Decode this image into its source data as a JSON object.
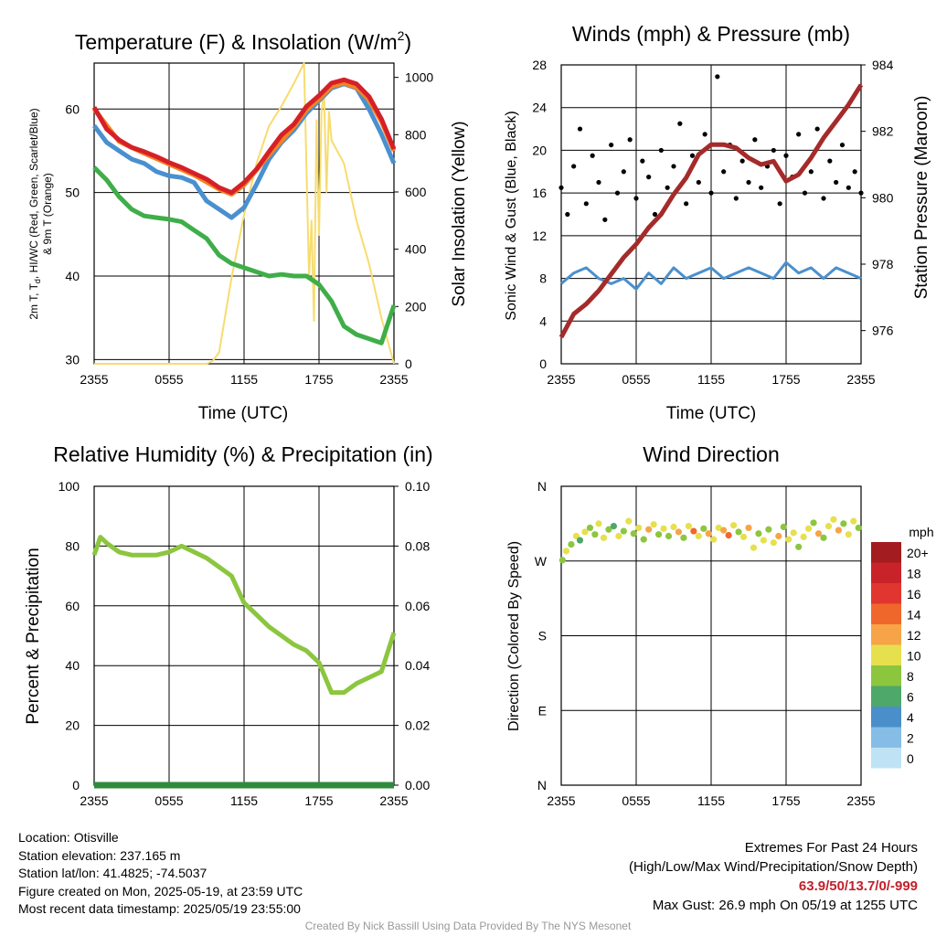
{
  "colors": {
    "temp": "#d62027",
    "heat_index": "#f58220",
    "dewpoint": "#3fae49",
    "wind_chill": "#4a90cf",
    "insolation": "#f7dc6f",
    "pressure": "#a52a2a",
    "gust": "#000000",
    "wind": "#4a90cf",
    "rh": "#8cc63f",
    "precip": "#2e8b3c"
  },
  "x_ticks": [
    "2355",
    "0555",
    "1155",
    "1755",
    "2355"
  ],
  "panels": {
    "temperature": {
      "title": "Temperature (F) & Insolation (W/m",
      "title_sup": "2",
      "title_tail": ")",
      "xlabel": "Time (UTC)",
      "ylabel_left_line1": "2m T, T",
      "ylabel_left_sub": "d",
      "ylabel_left_line1b": ", HI/WC (Red, Green, Scarlet/Blue)",
      "ylabel_left_line2": "& 9m T (Orange)",
      "ylabel_right": "Solar Insolation (Yellow)",
      "left_ticks": [
        "30",
        "40",
        "50",
        "60"
      ],
      "right_ticks": [
        "0",
        "200",
        "400",
        "600",
        "800",
        "1000"
      ]
    },
    "winds": {
      "title": "Winds (mph) & Pressure (mb)",
      "xlabel": "Time (UTC)",
      "ylabel_left": "Sonic Wind & Gust (Blue, Black)",
      "ylabel_right": "Station Pressure (Maroon)",
      "left_ticks": [
        "0",
        "4",
        "8",
        "12",
        "16",
        "20",
        "24",
        "28"
      ],
      "right_ticks": [
        "976",
        "978",
        "980",
        "982",
        "984"
      ]
    },
    "humidity": {
      "title": "Relative Humidity (%) & Precipitation (in)",
      "ylabel_left": "Percent & Precipitation",
      "left_ticks": [
        "0",
        "20",
        "40",
        "60",
        "80",
        "100"
      ],
      "right_ticks": [
        "0.00",
        "0.02",
        "0.04",
        "0.06",
        "0.08",
        "0.10"
      ]
    },
    "direction": {
      "title": "Wind Direction",
      "ylabel_left": "Direction (Colored By Speed)",
      "left_ticks": [
        "N",
        "E",
        "S",
        "W",
        "N"
      ],
      "legend_title": "mph",
      "legend_labels": [
        "20+",
        "18",
        "16",
        "14",
        "12",
        "10",
        "8",
        "6",
        "4",
        "2",
        "0"
      ],
      "legend_colors": [
        "#a31c1f",
        "#c9232a",
        "#e0362f",
        "#f0672c",
        "#f7a448",
        "#e6e04e",
        "#8cc63f",
        "#4ea86a",
        "#4a8fca",
        "#86bde6",
        "#bfe3f5"
      ]
    }
  },
  "chart_data": [
    {
      "type": "line",
      "title": "Temperature (F) & Insolation (W/m2)",
      "xlabel": "Time (UTC)",
      "ylabel": "2m T, Td, HI/WC (Red, Green, Scarlet/Blue) & 9m T (Orange)",
      "y2label": "Solar Insolation (Yellow)",
      "x_range_hours": [
        0,
        24
      ],
      "ylim": [
        29.5,
        65.5
      ],
      "y2lim": [
        0,
        1050
      ],
      "series": [
        {
          "name": "2m T",
          "axis": "left",
          "x_hours": [
            0,
            1,
            2,
            3,
            4,
            5,
            6,
            7,
            8,
            9,
            10,
            11,
            12,
            13,
            14,
            15,
            16,
            17,
            18,
            19,
            20,
            21,
            22,
            23,
            24
          ],
          "values": [
            60.2,
            57.6,
            56.3,
            55.4,
            54.9,
            54.3,
            53.6,
            53.0,
            52.3,
            51.6,
            50.6,
            50.0,
            51.2,
            52.8,
            54.9,
            56.9,
            58.2,
            60.3,
            61.6,
            63.1,
            63.5,
            63.0,
            61.5,
            58.8,
            55.2
          ]
        },
        {
          "name": "9m T",
          "axis": "left",
          "x_hours": [
            0,
            2,
            4,
            6,
            8,
            10,
            11,
            12,
            14,
            16,
            17,
            18,
            19,
            20,
            21,
            22,
            23,
            24
          ],
          "values": [
            60.0,
            56.1,
            54.7,
            53.4,
            52.1,
            50.4,
            49.8,
            50.9,
            54.5,
            57.9,
            59.9,
            61.2,
            62.7,
            63.1,
            62.6,
            61.1,
            58.5,
            55.0
          ]
        },
        {
          "name": "HI/WC",
          "axis": "left",
          "x_hours": [
            0,
            1,
            2,
            3,
            4,
            5,
            6,
            7,
            8,
            9,
            10,
            11,
            12,
            13,
            14,
            15,
            16,
            17,
            18,
            19,
            20,
            21,
            22,
            23,
            24
          ],
          "values": [
            58.0,
            56.0,
            55.0,
            54.0,
            53.5,
            52.5,
            52.0,
            51.8,
            51.2,
            49.0,
            48.0,
            47.0,
            48.2,
            51.0,
            54.0,
            56.0,
            57.5,
            59.5,
            61.0,
            62.5,
            63.0,
            62.5,
            60.0,
            57.0,
            53.5
          ]
        },
        {
          "name": "Td",
          "axis": "left",
          "x_hours": [
            0,
            1,
            2,
            3,
            4,
            5,
            6,
            7,
            8,
            9,
            10,
            11,
            12,
            13,
            14,
            15,
            16,
            17,
            18,
            19,
            20,
            21,
            22,
            23,
            24
          ],
          "values": [
            53.0,
            51.5,
            49.5,
            48.0,
            47.2,
            47.0,
            46.8,
            46.5,
            45.5,
            44.5,
            42.5,
            41.5,
            41.0,
            40.5,
            40.0,
            40.2,
            40.0,
            40.0,
            39.0,
            37.0,
            34.0,
            33.0,
            32.5,
            32.0,
            36.5
          ]
        },
        {
          "name": "Solar Insolation",
          "axis": "right",
          "x_hours": [
            0,
            8,
            9,
            9.5,
            10,
            11,
            12,
            13,
            14,
            15,
            16,
            16.8,
            17.2,
            17.4,
            17.6,
            17.8,
            18.0,
            18.2,
            18.4,
            18.6,
            18.8,
            19,
            20,
            21,
            22,
            23,
            24
          ],
          "values": [
            0,
            0,
            0,
            10,
            40,
            300,
            520,
            700,
            830,
            900,
            980,
            1050,
            300,
            500,
            150,
            850,
            450,
            880,
            950,
            600,
            880,
            780,
            700,
            500,
            350,
            160,
            0
          ]
        }
      ]
    },
    {
      "type": "line",
      "title": "Winds (mph) & Pressure (mb)",
      "xlabel": "Time (UTC)",
      "ylabel": "Sonic Wind & Gust (Blue, Black)",
      "y2label": "Station Pressure (Maroon)",
      "x_range_hours": [
        0,
        24
      ],
      "ylim": [
        0,
        28
      ],
      "y2lim": [
        975,
        984
      ],
      "series": [
        {
          "name": "Sonic Wind",
          "axis": "left",
          "x_hours": [
            0,
            1,
            2,
            3,
            4,
            5,
            6,
            7,
            8,
            9,
            10,
            11,
            12,
            13,
            14,
            15,
            16,
            17,
            18,
            19,
            20,
            21,
            22,
            23,
            24
          ],
          "values": [
            7.5,
            8.5,
            9.0,
            8.0,
            7.5,
            8.0,
            7.0,
            8.5,
            7.5,
            9.0,
            8.0,
            8.5,
            9.0,
            8.0,
            8.5,
            9.0,
            8.5,
            8.0,
            9.5,
            8.5,
            9.0,
            8.0,
            9.0,
            8.5,
            8.0
          ]
        },
        {
          "name": "Gust",
          "axis": "left",
          "x_hours": [
            0,
            0.5,
            1,
            1.5,
            2,
            2.5,
            3,
            3.5,
            4,
            4.5,
            5,
            5.5,
            6,
            6.5,
            7,
            7.5,
            8,
            8.5,
            9,
            9.5,
            10,
            10.5,
            11,
            11.5,
            12,
            12.5,
            13,
            13.5,
            14,
            14.5,
            15,
            15.5,
            16,
            16.5,
            17,
            17.5,
            18,
            18.5,
            19,
            19.5,
            20,
            20.5,
            21,
            21.5,
            22,
            22.5,
            23,
            23.5,
            24
          ],
          "values": [
            16.5,
            14.0,
            18.5,
            22.0,
            15.0,
            19.5,
            17.0,
            13.5,
            20.5,
            16.0,
            18.0,
            21.0,
            15.5,
            19.0,
            17.5,
            14.0,
            20.0,
            16.5,
            18.5,
            22.5,
            15.0,
            19.5,
            17.0,
            21.5,
            16.0,
            26.9,
            18.0,
            20.5,
            15.5,
            19.0,
            17.0,
            21.0,
            16.5,
            18.5,
            20.0,
            15.0,
            19.5,
            17.5,
            21.5,
            16.0,
            18.0,
            22.0,
            15.5,
            19.0,
            17.0,
            20.5,
            16.5,
            18.0,
            16.0
          ]
        },
        {
          "name": "Station Pressure",
          "axis": "right",
          "x_hours": [
            0,
            1,
            2,
            3,
            4,
            5,
            6,
            7,
            8,
            9,
            10,
            11,
            12,
            13,
            14,
            15,
            16,
            17,
            18,
            19,
            20,
            21,
            22,
            23,
            24
          ],
          "values": [
            975.8,
            976.5,
            976.8,
            977.2,
            977.7,
            978.2,
            978.6,
            979.1,
            979.5,
            980.1,
            980.6,
            981.3,
            981.6,
            981.6,
            981.5,
            981.2,
            981.0,
            981.1,
            980.5,
            980.7,
            981.2,
            981.8,
            982.3,
            982.8,
            983.4
          ]
        }
      ]
    },
    {
      "type": "line",
      "title": "Relative Humidity (%) & Precipitation (in)",
      "ylabel": "Percent & Precipitation",
      "x_range_hours": [
        0,
        24
      ],
      "ylim": [
        0,
        100
      ],
      "y2lim": [
        0,
        0.1
      ],
      "series": [
        {
          "name": "Relative Humidity",
          "axis": "left",
          "x_hours": [
            0,
            0.5,
            1,
            2,
            3,
            4,
            5,
            6,
            7,
            8,
            9,
            10,
            11,
            12,
            13,
            14,
            15,
            16,
            17,
            18,
            19,
            20,
            21,
            22,
            23,
            24
          ],
          "values": [
            77,
            83,
            81,
            78,
            77,
            77,
            77,
            78,
            80,
            78,
            76,
            73,
            70,
            61,
            57,
            53,
            50,
            47,
            45,
            41,
            31,
            31,
            34,
            36,
            38,
            51
          ]
        },
        {
          "name": "Precipitation",
          "axis": "right",
          "x_hours": [
            0,
            24
          ],
          "values": [
            0.0,
            0.0
          ]
        }
      ]
    },
    {
      "type": "scatter",
      "title": "Wind Direction",
      "ylabel": "Direction (Colored By Speed)",
      "x_range_hours": [
        0,
        24
      ],
      "y_categories": [
        "N",
        "E",
        "S",
        "W",
        "N"
      ],
      "ylim_deg": [
        0,
        360
      ],
      "points": {
        "x_hours": [
          0.1,
          0.4,
          0.8,
          1.2,
          1.5,
          1.9,
          2.3,
          2.7,
          3.0,
          3.4,
          3.8,
          4.2,
          4.6,
          5.0,
          5.4,
          5.8,
          6.2,
          6.6,
          7.0,
          7.4,
          7.8,
          8.2,
          8.6,
          9.0,
          9.4,
          9.8,
          10.2,
          10.6,
          11.0,
          11.4,
          11.8,
          12.2,
          12.6,
          13.0,
          13.4,
          13.8,
          14.2,
          14.6,
          15.0,
          15.4,
          15.8,
          16.2,
          16.6,
          17.0,
          17.4,
          17.8,
          18.2,
          18.6,
          19.0,
          19.4,
          19.8,
          20.2,
          20.6,
          21.0,
          21.4,
          21.8,
          22.2,
          22.6,
          23.0,
          23.4,
          23.8
        ],
        "direction_deg": [
          271,
          282,
          290,
          300,
          295,
          305,
          310,
          302,
          315,
          298,
          308,
          312,
          300,
          306,
          318,
          303,
          310,
          296,
          308,
          314,
          302,
          309,
          300,
          311,
          305,
          298,
          312,
          306,
          300,
          309,
          303,
          296,
          310,
          307,
          301,
          313,
          305,
          299,
          310,
          286,
          303,
          295,
          308,
          292,
          300,
          311,
          296,
          304,
          287,
          299,
          309,
          316,
          303,
          298,
          312,
          320,
          307,
          315,
          302,
          318,
          310
        ],
        "speed_mph": [
          7,
          9,
          8,
          10,
          6,
          9,
          8,
          7,
          9,
          10,
          8,
          6,
          9,
          8,
          10,
          7,
          9,
          8,
          11,
          9,
          8,
          10,
          7,
          9,
          12,
          8,
          10,
          13,
          9,
          8,
          11,
          10,
          9,
          12,
          14,
          9,
          8,
          10,
          11,
          9,
          8,
          10,
          7,
          9,
          11,
          8,
          10,
          9,
          8,
          10,
          9,
          7,
          11,
          8,
          10,
          9,
          12,
          8,
          10,
          9,
          8
        ]
      }
    }
  ],
  "info": {
    "location": "Location: Otisville",
    "elevation": "Station elevation: 237.165 m",
    "latlon": "Station lat/lon: 41.4825; -74.5037",
    "created": "Figure created on Mon, 2025-05-19, at 23:59 UTC",
    "recent": "Most recent data timestamp: 2025/05/19 23:55:00",
    "extremes_title": "Extremes For Past 24 Hours",
    "extremes_sub": "(High/Low/Max Wind/Precipitation/Snow Depth)",
    "extremes_values": "63.9/50/13.7/0/-999",
    "max_gust": "Max Gust: 26.9 mph On 05/19 at 1255 UTC",
    "credit": "Created By Nick Bassill Using Data Provided By The NYS Mesonet"
  }
}
